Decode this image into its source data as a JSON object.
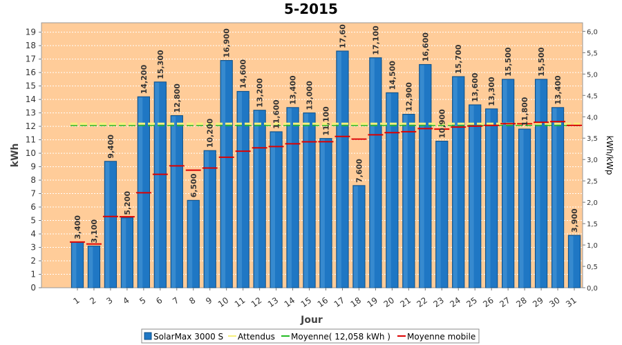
{
  "chart_data": {
    "type": "bar",
    "title": "5-2015",
    "xlabel": "Jour",
    "ylabel": "kWh",
    "y2label": "kWh/kWp",
    "ylim": [
      0,
      19.7
    ],
    "y2lim": [
      0,
      6.2
    ],
    "y_ticks": [
      "0",
      "1",
      "2",
      "3",
      "4",
      "5",
      "6",
      "7",
      "8",
      "9",
      "10",
      "11",
      "12",
      "13",
      "14",
      "15",
      "16",
      "17",
      "18",
      "19"
    ],
    "y2_ticks": [
      "0,0",
      "0,5",
      "1,0",
      "1,5",
      "2,0",
      "2,5",
      "3,0",
      "3,5",
      "4,0",
      "4,5",
      "5,0",
      "5,5",
      "6,0"
    ],
    "categories": [
      "1",
      "2",
      "3",
      "4",
      "5",
      "6",
      "7",
      "8",
      "9",
      "10",
      "11",
      "12",
      "13",
      "14",
      "15",
      "16",
      "17",
      "18",
      "19",
      "20",
      "21",
      "22",
      "23",
      "24",
      "25",
      "26",
      "27",
      "28",
      "29",
      "30",
      "31"
    ],
    "series": [
      {
        "name": "SolarMax 3000 S",
        "type": "bar",
        "color": "#1f77c4",
        "values": [
          3.4,
          3.1,
          9.4,
          5.2,
          14.2,
          15.3,
          12.8,
          6.5,
          10.2,
          16.9,
          14.6,
          13.2,
          11.6,
          13.4,
          13.0,
          11.1,
          17.6,
          7.6,
          17.1,
          14.5,
          12.9,
          16.6,
          10.9,
          15.7,
          13.6,
          13.3,
          15.5,
          11.8,
          15.5,
          13.4,
          3.9
        ],
        "labels": [
          "3,400",
          "3,100",
          "9,400",
          "5,200",
          "14,200",
          "15,300",
          "12,800",
          "6,500",
          "10,200",
          "16,900",
          "14,600",
          "13,200",
          "11,600",
          "13,400",
          "13,000",
          "11,100",
          "17,60",
          "7,600",
          "17,100",
          "14,500",
          "12,900",
          "16,600",
          "10,900",
          "15,700",
          "13,600",
          "13,300",
          "15,500",
          "11,800",
          "15,500",
          "13,400",
          "3,900"
        ]
      },
      {
        "name": "Attendus",
        "type": "line",
        "color": "#f5f07a",
        "values": [
          12.2,
          12.2,
          12.2,
          12.2,
          12.2,
          12.2,
          12.2,
          12.2,
          12.2,
          12.2,
          12.2,
          12.2,
          12.2,
          12.2,
          12.2,
          12.2,
          12.2,
          12.2,
          12.2,
          12.2,
          12.2,
          12.2,
          12.2,
          12.2,
          12.2,
          12.2,
          12.2,
          12.2,
          12.2,
          12.2,
          12.2
        ]
      },
      {
        "name": "Moyenne( 12,058 kWh )",
        "type": "line",
        "color": "#22bb22",
        "values": [
          12.058,
          12.058,
          12.058,
          12.058,
          12.058,
          12.058,
          12.058,
          12.058,
          12.058,
          12.058,
          12.058,
          12.058,
          12.058,
          12.058,
          12.058,
          12.058,
          12.058,
          12.058,
          12.058,
          12.058,
          12.058,
          12.058,
          12.058,
          12.058,
          12.058,
          12.058,
          12.058,
          12.058,
          12.058,
          12.058,
          12.058
        ]
      },
      {
        "name": "Moyenne mobile",
        "type": "step",
        "color": "#dd0000",
        "values": [
          3.4,
          3.25,
          5.3,
          5.28,
          7.06,
          8.43,
          9.06,
          8.74,
          8.9,
          9.7,
          10.15,
          10.4,
          10.5,
          10.7,
          10.85,
          10.86,
          11.25,
          11.05,
          11.37,
          11.53,
          11.6,
          11.83,
          11.79,
          11.95,
          12.02,
          12.07,
          12.2,
          12.19,
          12.3,
          12.35,
          12.07
        ]
      }
    ],
    "legend": {
      "position": "bottom",
      "items": [
        "SolarMax 3000 S",
        "Attendus",
        "Moyenne( 12,058 kWh )",
        "Moyenne mobile"
      ]
    },
    "grid": true
  },
  "colors": {
    "plot_bg": "#ffcc99",
    "bar_fill": "#1f77c4",
    "bar_dark": "#0d4f86",
    "grid": "#ffffff"
  }
}
